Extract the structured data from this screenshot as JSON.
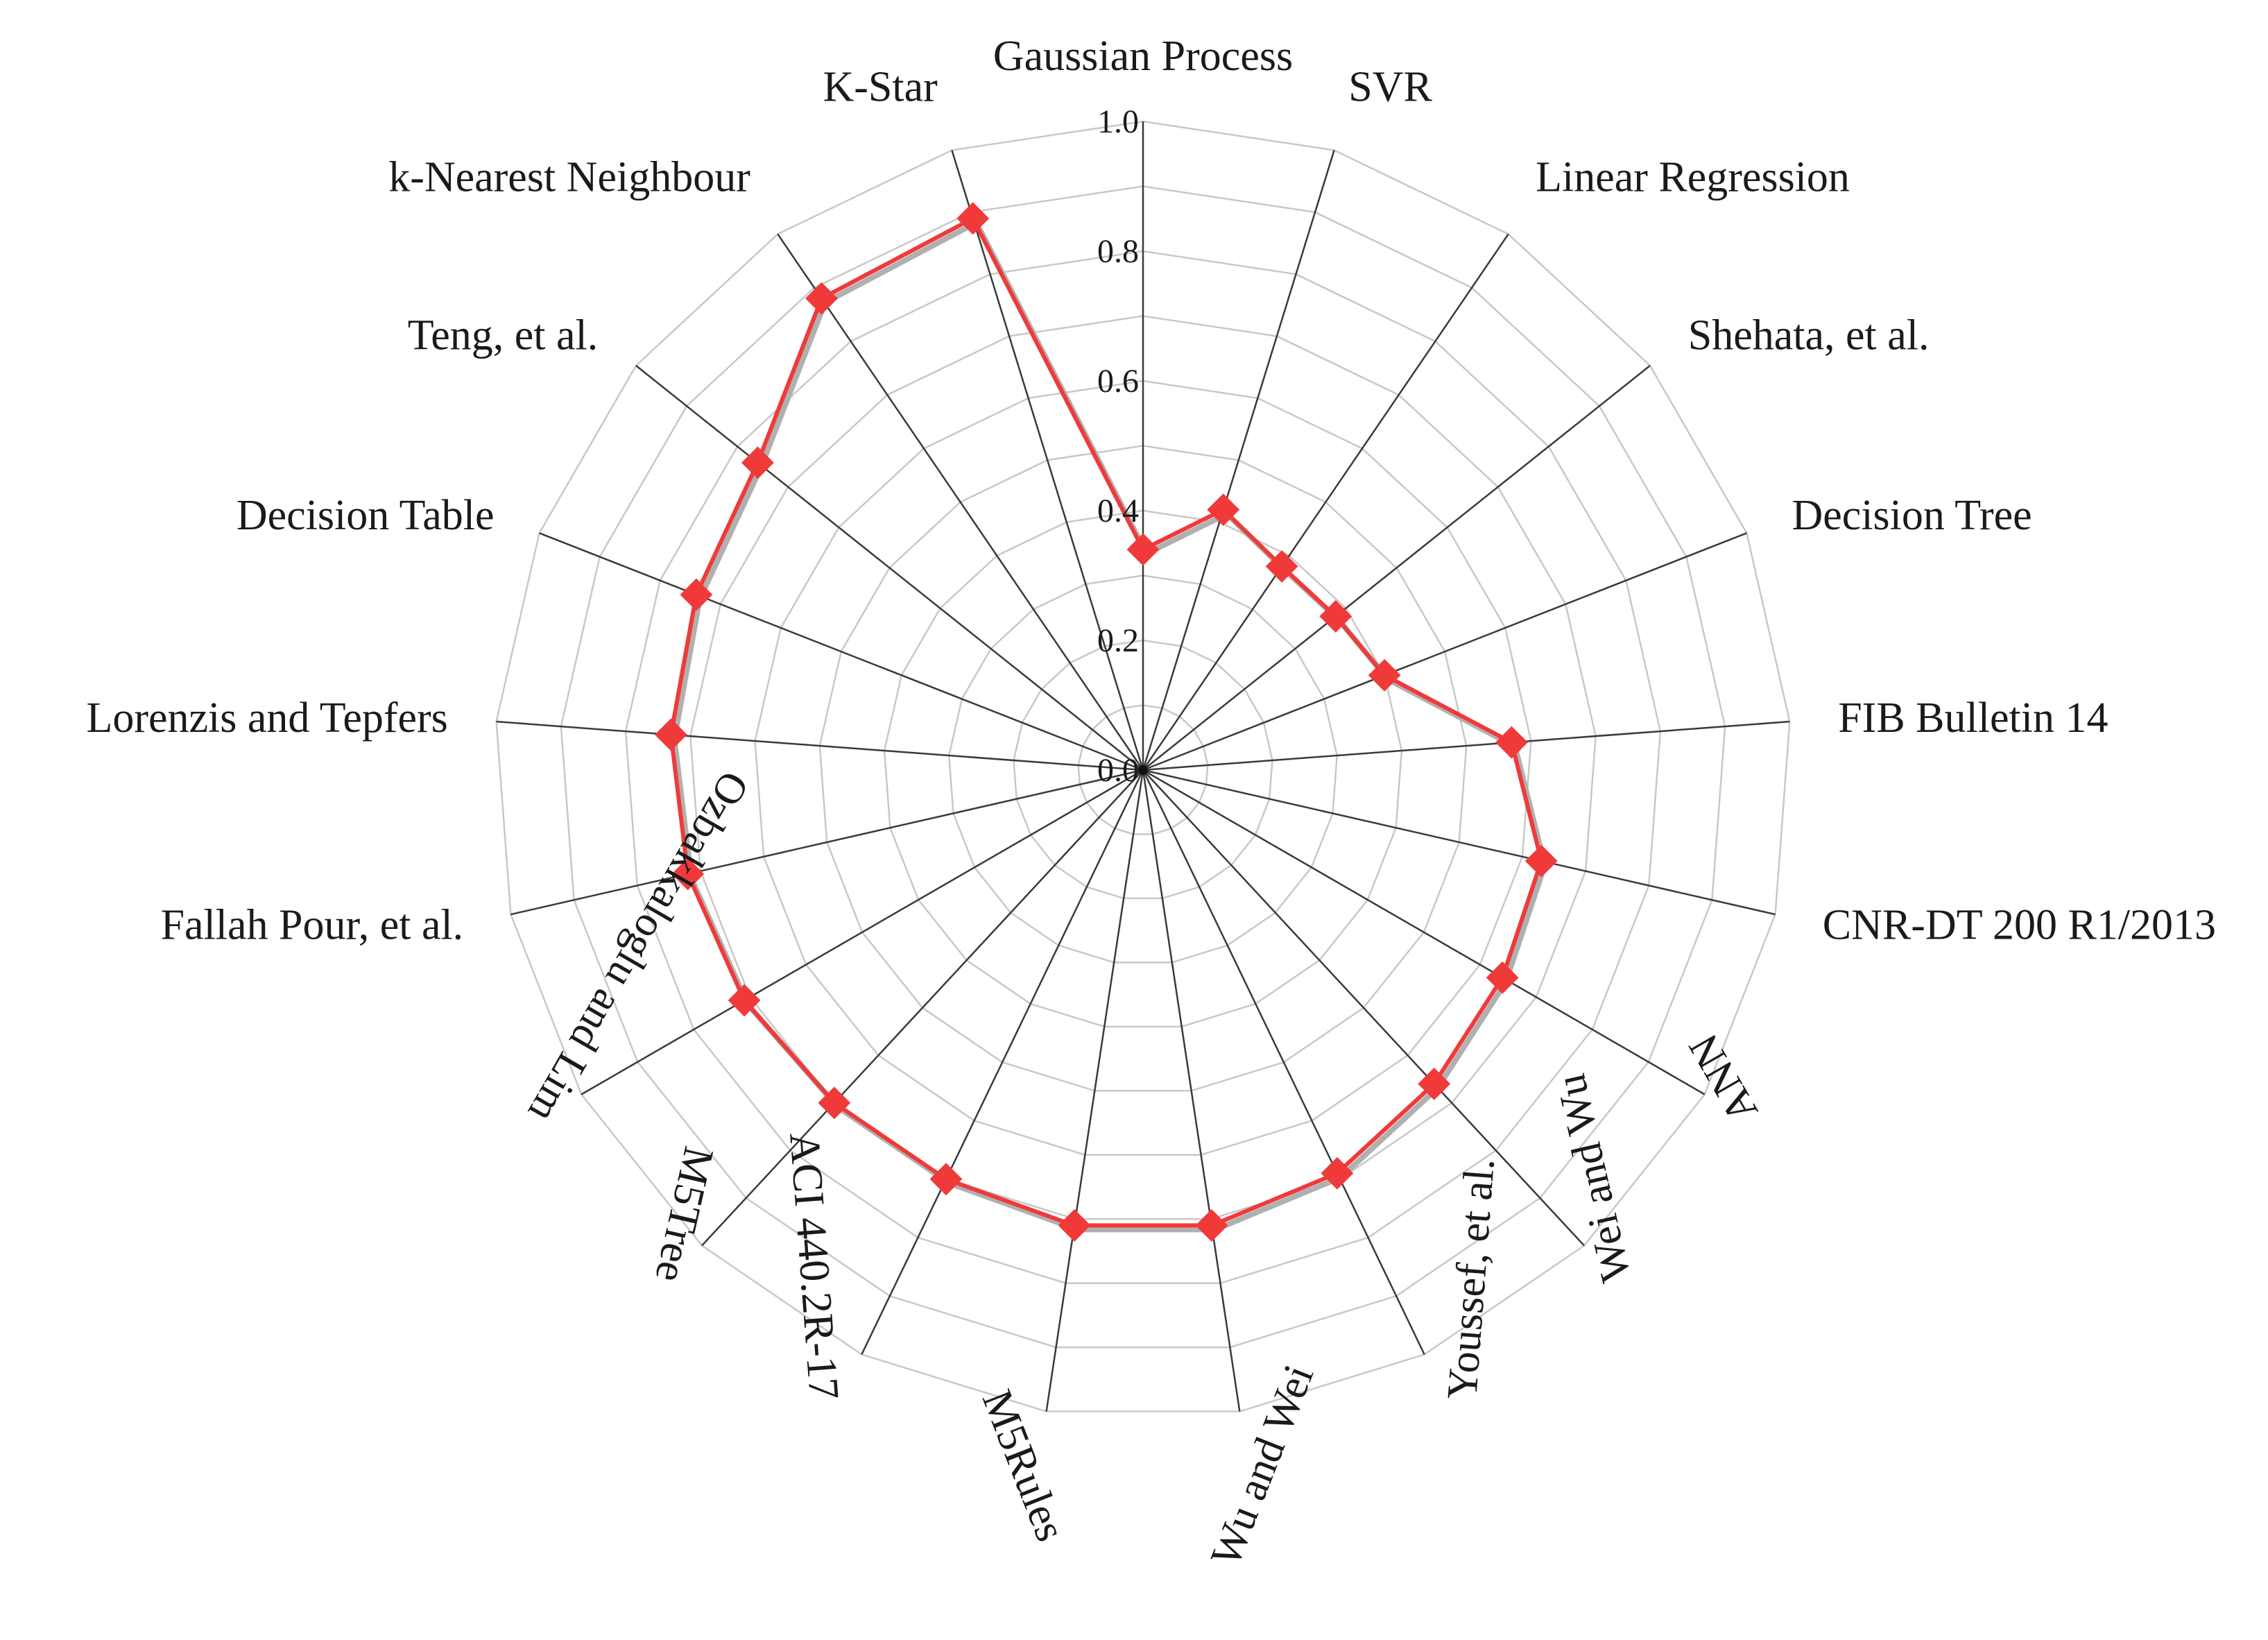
{
  "chart_data": {
    "type": "radar",
    "title": "",
    "categories": [
      "Gaussian Process",
      "SVR",
      "Linear Regression",
      "Shehata, et al.",
      "Decision Tree",
      "FIB Bulletin 14",
      "CNR-DT 200 R1/2013",
      "ANN",
      "Wei and Wu",
      "Youssef, et al.",
      "Wu and Wei",
      "M5Rules",
      "ACI 440.2R-17",
      "M5Tree",
      "Ozbakkaloglu and Lim",
      "Fallah Pour, et al.",
      "Lorenzis and Tepfers",
      "Decision Table",
      "Teng, et al.",
      "k-Nearest Neighbour",
      "K-Star"
    ],
    "series": [
      {
        "name": "",
        "color": "#f03a3a",
        "values": [
          0.34,
          0.42,
          0.38,
          0.38,
          0.4,
          0.57,
          0.63,
          0.64,
          0.66,
          0.69,
          0.71,
          0.71,
          0.7,
          0.7,
          0.71,
          0.72,
          0.73,
          0.74,
          0.76,
          0.88,
          0.89
        ]
      }
    ],
    "shadow_series_color": "#b0b0b0",
    "rlim": [
      0.0,
      1.0
    ],
    "ticks": [
      "0.0",
      "0.2",
      "0.4",
      "0.6",
      "0.8",
      "1.0"
    ],
    "tick_values": [
      0,
      0.2,
      0.4,
      0.6,
      0.8,
      1.0
    ],
    "grid": true,
    "legend": "none",
    "marker": "diamond"
  }
}
